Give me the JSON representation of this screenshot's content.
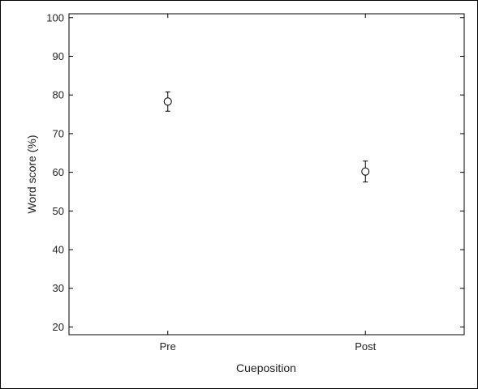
{
  "chart_data": {
    "type": "scatter",
    "categories": [
      "Pre",
      "Post"
    ],
    "series": [
      {
        "values": [
          78.3,
          60.2
        ],
        "error": [
          2.5,
          2.7
        ],
        "marker": "open-circle"
      }
    ],
    "title": "",
    "xlabel": "Cueposition",
    "ylabel": "Word score (%)",
    "ylim": [
      18,
      101
    ],
    "yticks": [
      20,
      30,
      40,
      50,
      60,
      70,
      80,
      90,
      100
    ],
    "grid": false,
    "legend": "none"
  }
}
